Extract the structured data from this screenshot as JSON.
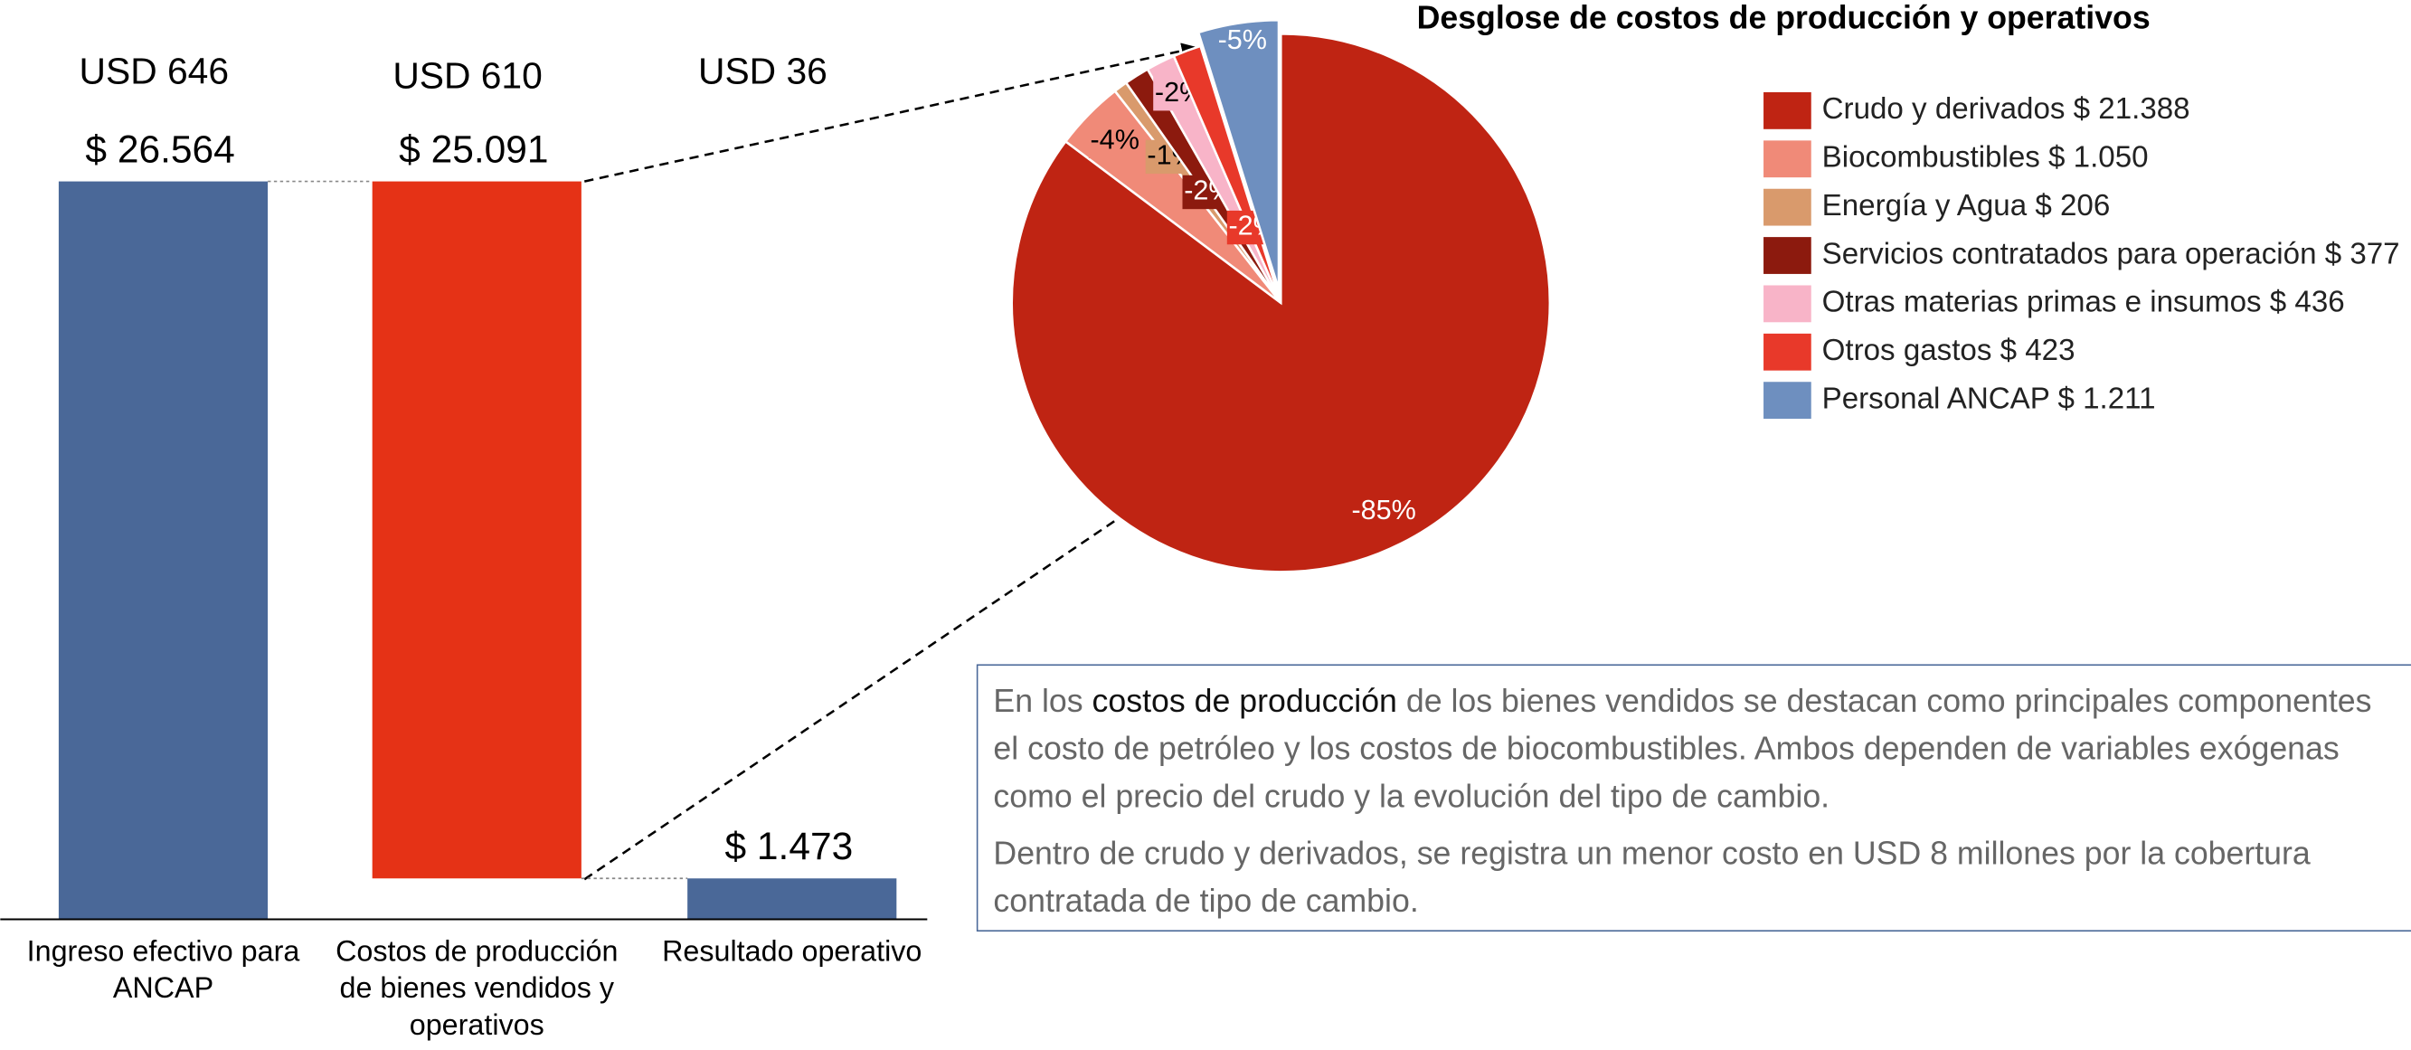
{
  "chart_data": [
    {
      "type": "waterfall",
      "categories": [
        "Ingreso efectivo para ANCAP",
        "Costos de producción de bienes vendidos y operativos",
        "Resultado operativo"
      ],
      "values": [
        26564,
        25091,
        1473
      ],
      "value_labels": [
        "$ 26.564",
        "$ 25.091",
        "$ 1.473"
      ],
      "usd_labels": [
        "USD 646",
        "USD 610",
        "USD 36"
      ],
      "colors": [
        "#4a6898",
        "#e53216",
        "#4a6898"
      ]
    },
    {
      "type": "pie",
      "title": "Desglose de costos de producción y operativos",
      "series": [
        {
          "name": "Crudo y derivados $ 21.388",
          "color": "#bf2413",
          "values": [
            21388
          ],
          "value_labels": [
            "-85%"
          ]
        },
        {
          "name": "Biocombustibles $ 1.050",
          "color": "#f08a78",
          "values": [
            1050
          ],
          "value_labels": [
            "-4%"
          ]
        },
        {
          "name": "Energía y Agua $ 206",
          "color": "#d99a6c",
          "values": [
            206
          ],
          "value_labels": [
            "-1%"
          ]
        },
        {
          "name": "Servicios contratados para operación $ 377",
          "color": "#8c1a0e",
          "values": [
            377
          ],
          "value_labels": [
            "-2%"
          ]
        },
        {
          "name": "Otras materias primas e insumos $ 436",
          "color": "#f8b4c8",
          "values": [
            436
          ],
          "value_labels": [
            "-2%"
          ]
        },
        {
          "name": "Otros gastos $ 423",
          "color": "#e8392a",
          "values": [
            423
          ],
          "value_labels": [
            "-2%"
          ]
        },
        {
          "name": "Personal ANCAP $ 1.211",
          "color": "#6e8fbf",
          "values": [
            1211
          ],
          "value_labels": [
            "-5%"
          ]
        }
      ]
    }
  ],
  "note": {
    "paragraphs": [
      [
        "En los ",
        "costos de producción",
        " de los bienes vendidos se destacan como principales componentes el costo de petróleo y los costos de biocombustibles. Ambos dependen de variables exógenas como el precio del crudo y la evolución del tipo de cambio."
      ],
      [
        "Dentro de crudo y derivados, se registra un menor costo en USD 8 millones por la cobertura contratada de tipo de cambio."
      ]
    ]
  }
}
